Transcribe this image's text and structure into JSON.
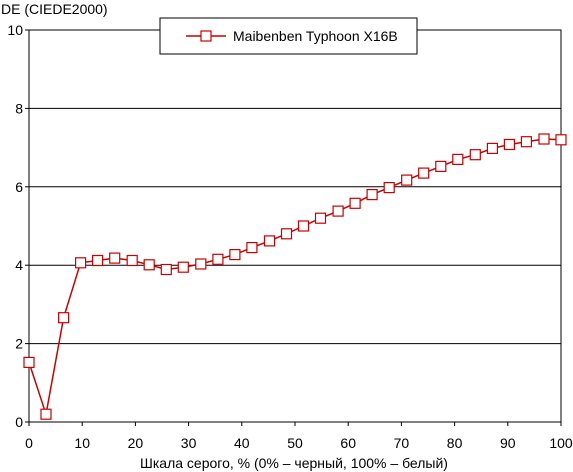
{
  "chart_data": {
    "type": "line",
    "title": "",
    "ylabel": "DE (CIEDE2000)",
    "xlabel": "Шкала серого, % (0% – черный, 100% – белый)",
    "xlim": [
      0,
      100
    ],
    "ylim": [
      0,
      10
    ],
    "xticks": [
      "0",
      "10",
      "20",
      "30",
      "40",
      "50",
      "60",
      "70",
      "80",
      "90",
      "100"
    ],
    "yticks": [
      "0",
      "2",
      "4",
      "6",
      "8",
      "10"
    ],
    "grid": "horizontal",
    "legend_position": "top-center",
    "series": [
      {
        "name": "Maibenben Typhoon X16B",
        "color": "#cc0000",
        "marker": "square-open",
        "x": [
          0,
          3.2,
          6.5,
          9.7,
          12.9,
          16.1,
          19.4,
          22.6,
          25.8,
          29.0,
          32.3,
          35.5,
          38.7,
          41.9,
          45.2,
          48.4,
          51.6,
          54.8,
          58.1,
          61.3,
          64.5,
          67.7,
          71.0,
          74.2,
          77.4,
          80.6,
          83.9,
          87.1,
          90.3,
          93.5,
          96.8,
          100
        ],
        "y": [
          1.52,
          0.2,
          2.66,
          4.06,
          4.12,
          4.18,
          4.12,
          4.01,
          3.89,
          3.95,
          4.03,
          4.15,
          4.27,
          4.45,
          4.62,
          4.8,
          5.0,
          5.2,
          5.38,
          5.58,
          5.8,
          5.98,
          6.17,
          6.35,
          6.52,
          6.7,
          6.82,
          6.98,
          7.08,
          7.15,
          7.22,
          7.2
        ]
      }
    ]
  }
}
